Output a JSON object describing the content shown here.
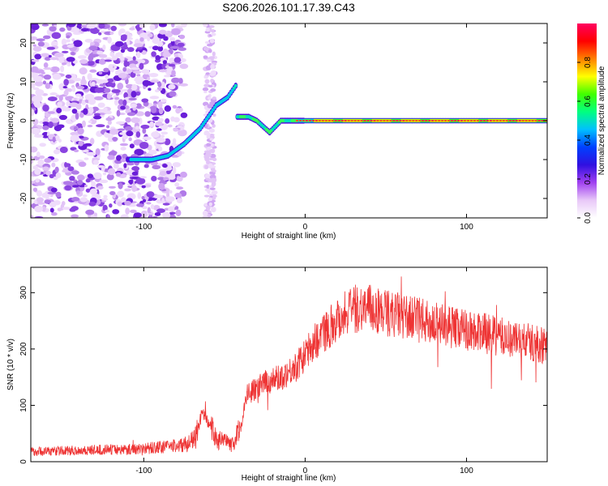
{
  "figure": {
    "title": "S206.2026.101.17.39.C43"
  },
  "chart_data": [
    {
      "type": "heatmap",
      "name": "spectrogram",
      "xlabel": "Height of straight line (km)",
      "ylabel": "Frequency (Hz)",
      "xlim": [
        -170,
        150
      ],
      "ylim": [
        -25,
        25
      ],
      "xticks": [
        -100,
        0,
        100
      ],
      "yticks": [
        -20,
        -10,
        0,
        10,
        20
      ],
      "xtick_labels": [
        "-100",
        "0",
        "100"
      ],
      "ytick_labels": [
        "-20",
        "-10",
        "0",
        "10",
        "20"
      ],
      "colorbar": {
        "label": "Normalized spectral amplitude",
        "range": [
          0,
          1
        ],
        "ticks": [
          0.0,
          0.2,
          0.4,
          0.6,
          0.8
        ],
        "tick_labels": [
          "0.0",
          "0.2",
          "0.4",
          "0.6",
          "0.8"
        ],
        "colors": [
          "#ffffff",
          "#e8c8f8",
          "#a040f0",
          "#3010e0",
          "#0040ff",
          "#00c0ff",
          "#00ff80",
          "#40ff00",
          "#ffff00",
          "#ff8000",
          "#ff0000",
          "#ff0060"
        ]
      },
      "ridge": [
        {
          "x": -105,
          "y": -10
        },
        {
          "x": -95,
          "y": -10
        },
        {
          "x": -85,
          "y": -9
        },
        {
          "x": -75,
          "y": -6
        },
        {
          "x": -70,
          "y": -4
        },
        {
          "x": -65,
          "y": -2
        },
        {
          "x": -60,
          "y": 1
        },
        {
          "x": -55,
          "y": 4
        },
        {
          "x": -48,
          "y": 6
        },
        {
          "x": -43,
          "y": 9
        },
        {
          "x": -42,
          "y": 1
        },
        {
          "x": -35,
          "y": 1
        },
        {
          "x": -30,
          "y": 0
        },
        {
          "x": -22,
          "y": -3
        },
        {
          "x": -15,
          "y": 0
        },
        {
          "x": -5,
          "y": 0
        },
        {
          "x": 0,
          "y": 0
        },
        {
          "x": 150,
          "y": 0
        }
      ]
    },
    {
      "type": "line",
      "name": "snr",
      "xlabel": "Height of straight line (km)",
      "ylabel": "SNR (10 * v/v)",
      "xlim": [
        -170,
        150
      ],
      "ylim": [
        0,
        345
      ],
      "xticks": [
        -100,
        0,
        100
      ],
      "yticks": [
        0,
        100,
        200,
        300
      ],
      "xtick_labels": [
        "-100",
        "0",
        "100"
      ],
      "ytick_labels": [
        "0",
        "100",
        "200",
        "300"
      ],
      "color": "#ee3333",
      "envelope": [
        {
          "x": -170,
          "y": 18
        },
        {
          "x": -140,
          "y": 20
        },
        {
          "x": -110,
          "y": 22
        },
        {
          "x": -90,
          "y": 25
        },
        {
          "x": -75,
          "y": 30
        },
        {
          "x": -68,
          "y": 40
        },
        {
          "x": -64,
          "y": 85
        },
        {
          "x": -60,
          "y": 70
        },
        {
          "x": -55,
          "y": 40
        },
        {
          "x": -45,
          "y": 30
        },
        {
          "x": -40,
          "y": 60
        },
        {
          "x": -36,
          "y": 120
        },
        {
          "x": -30,
          "y": 130
        },
        {
          "x": -25,
          "y": 140
        },
        {
          "x": -15,
          "y": 150
        },
        {
          "x": -5,
          "y": 170
        },
        {
          "x": 5,
          "y": 210
        },
        {
          "x": 15,
          "y": 240
        },
        {
          "x": 25,
          "y": 265
        },
        {
          "x": 35,
          "y": 275
        },
        {
          "x": 50,
          "y": 265
        },
        {
          "x": 65,
          "y": 255
        },
        {
          "x": 80,
          "y": 245
        },
        {
          "x": 100,
          "y": 235
        },
        {
          "x": 120,
          "y": 222
        },
        {
          "x": 140,
          "y": 212
        },
        {
          "x": 150,
          "y": 205
        }
      ]
    }
  ]
}
